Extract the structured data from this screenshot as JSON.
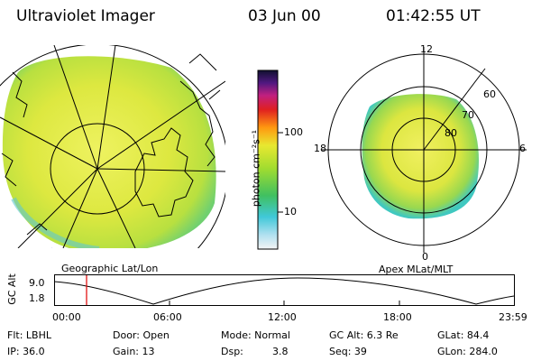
{
  "header": {
    "instrument": "Ultraviolet Imager",
    "date": "03 Jun 00",
    "time": "01:42:55 UT"
  },
  "colorbar": {
    "label": "photon cm⁻²s⁻¹",
    "tick_100": "100",
    "tick_10": "10"
  },
  "geo_panel": {
    "caption": "Geographic Lat/Lon"
  },
  "polar_panel": {
    "caption": "Apex MLat/MLT",
    "mlt_12": "12",
    "mlt_18": "18",
    "mlt_6": "6",
    "mlt_0": "0",
    "lat_60": "60",
    "lat_70": "70",
    "lat_80": "80"
  },
  "orbit": {
    "ylabel": "GC Alt",
    "ytick_top": "9.0",
    "ytick_bottom": "1.8",
    "xticks": [
      "00:00",
      "06:00",
      "12:00",
      "18:00",
      "23:59"
    ],
    "current_time_marker": "01:42:55"
  },
  "info": {
    "row1": {
      "filter": "Flt: LBHL",
      "door": "Door: Open",
      "mode": "Mode: Normal",
      "gc_alt": "GC Alt: 6.3 Re",
      "glat": "GLat: 84.4"
    },
    "row2": {
      "ip": "IP: 36.0",
      "gain": "Gain: 13",
      "dsp_label": "Dsp:",
      "dsp_value": "3.8",
      "seq": "Seq: 39",
      "glon": "GLon: 284.0"
    }
  },
  "colors": {
    "background": "#ffffff",
    "aurora_main": "#d8e830",
    "aurora_edge": "#60d070",
    "marker": "#e00000"
  }
}
